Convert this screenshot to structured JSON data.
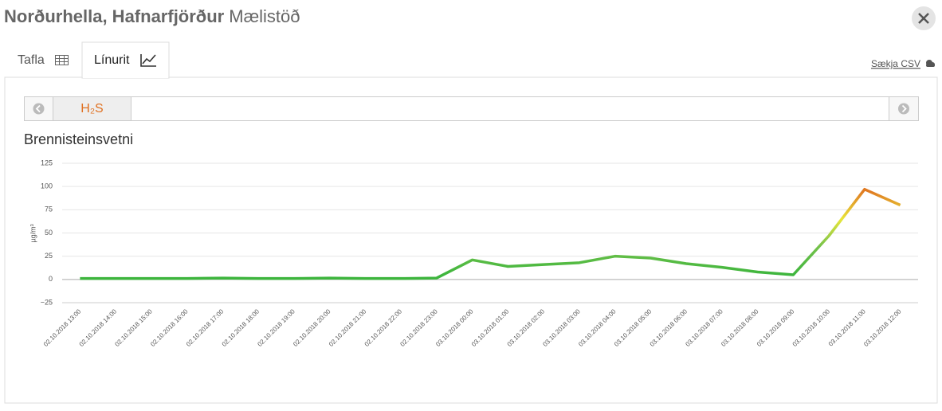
{
  "header": {
    "title": "Norðurhella, Hafnarfjörður",
    "subtitle": "Mælistöð"
  },
  "tabs": [
    "Tafla",
    "Línurit"
  ],
  "active_tab": 1,
  "download_link": "Sækja CSV",
  "pollutants": [
    "H₂S"
  ],
  "chart_data": {
    "type": "line",
    "title": "Brennisteinsvetni",
    "ylabel": "µg/m³",
    "categories": [
      "02.10.2018 13:00",
      "02.10.2018 14:00",
      "02.10.2018 15:00",
      "02.10.2018 16:00",
      "02.10.2018 17:00",
      "02.10.2018 18:00",
      "02.10.2018 19:00",
      "02.10.2018 20:00",
      "02.10.2018 21:00",
      "02.10.2018 22:00",
      "02.10.2018 23:00",
      "03.10.2018 00:00",
      "03.10.2018 01:00",
      "03.10.2018 02:00",
      "03.10.2018 03:00",
      "03.10.2018 04:00",
      "03.10.2018 05:00",
      "03.10.2018 06:00",
      "03.10.2018 07:00",
      "03.10.2018 08:00",
      "03.10.2018 09:00",
      "03.10.2018 10:00",
      "03.10.2018 11:00",
      "03.10.2018 12:00"
    ],
    "values": [
      1,
      1,
      1,
      1,
      1.5,
      1,
      1,
      1.5,
      1,
      1,
      1.5,
      21,
      14,
      16,
      18,
      25,
      23,
      17,
      13,
      8,
      5,
      47,
      97,
      80
    ],
    "line_colors": [
      "#3db53d",
      "#3db53d",
      "#74c24b",
      "#e8e63a",
      "#e07a22",
      "#e07a22"
    ],
    "ylim": [
      -25,
      125
    ],
    "yticks": [
      {
        "value": -25,
        "label": "−25"
      },
      0,
      25,
      50,
      75,
      100,
      125
    ],
    "grid": true
  }
}
